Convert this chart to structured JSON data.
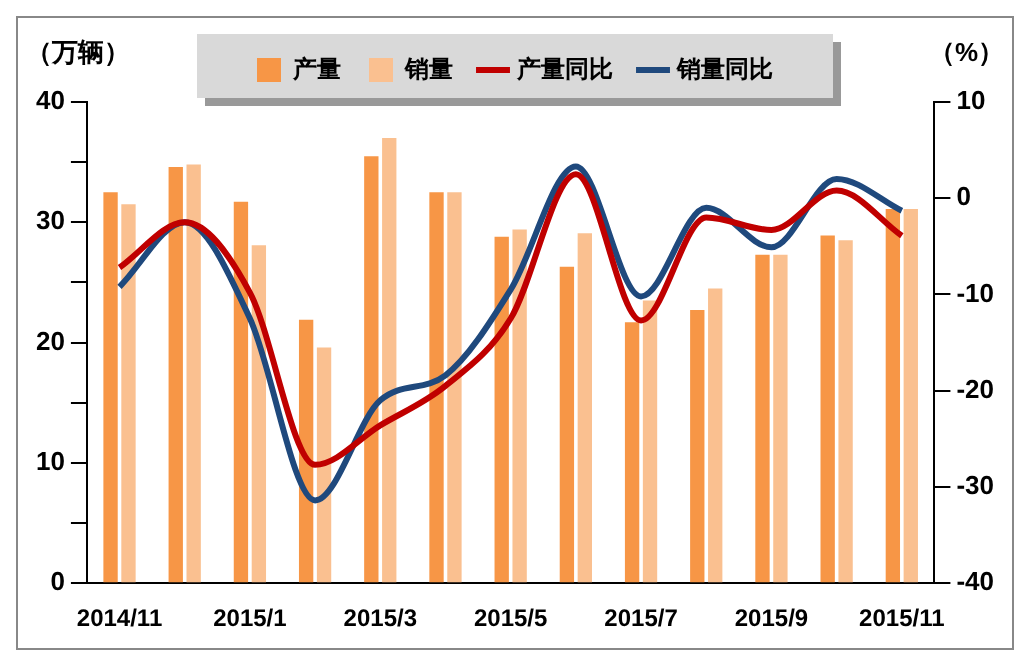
{
  "chart_data": {
    "type": "bar",
    "ylabel": "（万辆）",
    "y2label": "（%）",
    "categories": [
      "2014/11",
      null,
      "2015/1",
      null,
      "2015/3",
      null,
      "2015/5",
      null,
      "2015/7",
      null,
      "2015/9",
      null,
      "2015/11"
    ],
    "series": [
      {
        "name": "产量",
        "color": "#f79646",
        "values": [
          32.5,
          34.6,
          31.7,
          21.9,
          35.5,
          32.5,
          28.8,
          26.3,
          21.7,
          22.7,
          27.3,
          28.9,
          31.1
        ]
      },
      {
        "name": "销量",
        "color": "#fac090",
        "values": [
          31.5,
          34.8,
          28.1,
          19.6,
          37.0,
          32.5,
          29.4,
          29.1,
          23.5,
          24.5,
          27.3,
          28.5,
          31.1
        ]
      },
      {
        "name": "产量同比",
        "type": "line",
        "axis": "y2",
        "color": "#c00000",
        "values": [
          -7.2,
          -2.5,
          -9.8,
          -27.7,
          -23.6,
          -19.5,
          -12.5,
          2.5,
          -12.7,
          -2.0,
          -3.3,
          0.8,
          -3.9
        ]
      },
      {
        "name": "销量同比",
        "type": "line",
        "axis": "y2",
        "color": "#1f497d",
        "values": [
          -9.2,
          -2.5,
          -12.5,
          -31.4,
          -21.0,
          -18.4,
          -9.5,
          3.3,
          -10.2,
          -1.0,
          -5.1,
          2.0,
          -1.3
        ]
      }
    ],
    "ylim": [
      0,
      40
    ],
    "yticks": [
      0,
      {
        "value": 5,
        "label": null
      },
      10,
      {
        "value": 15,
        "label": null
      },
      20,
      {
        "value": 25,
        "label": null
      },
      30,
      {
        "value": 35,
        "label": null
      },
      40
    ],
    "y2lim": [
      -40,
      10
    ],
    "y2ticks": [
      -40,
      -30,
      -20,
      -10,
      0,
      10
    ],
    "grid": false,
    "legend": "top",
    "marker": "none"
  }
}
